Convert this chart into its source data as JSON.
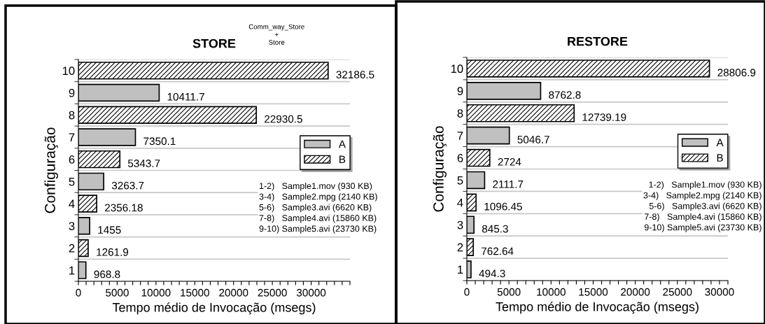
{
  "chart_data": [
    {
      "type": "bar",
      "orientation": "horizontal",
      "title": "STORE",
      "xlabel": "Tempo médio de Invocação (msegs)",
      "ylabel": "Configuração",
      "categories": [
        "10",
        "9",
        "8",
        "7",
        "6",
        "5",
        "4",
        "3",
        "2",
        "1"
      ],
      "series": [
        {
          "name": "A",
          "color": "#c0c0c0",
          "values": [
            null,
            10411.7,
            null,
            7350.1,
            null,
            3263.7,
            null,
            1455,
            null,
            968.8
          ]
        },
        {
          "name": "B",
          "color": "#000000",
          "values": [
            32186.5,
            null,
            22930.5,
            null,
            5343.7,
            null,
            2356.18,
            null,
            1261.9,
            null
          ]
        }
      ],
      "data_labels": true,
      "xlim": [
        0,
        35000
      ],
      "xticks": [
        0,
        {
          "value": 1000,
          "label": null
        },
        {
          "value": 2000,
          "label": null
        },
        {
          "value": 3000,
          "label": null
        },
        {
          "value": 4000,
          "label": null
        },
        5000,
        {
          "value": 6000,
          "label": null
        },
        {
          "value": 7000,
          "label": null
        },
        {
          "value": 8000,
          "label": null
        },
        {
          "value": 9000,
          "label": null
        },
        10000,
        {
          "value": 11000,
          "label": null
        },
        {
          "value": 12000,
          "label": null
        },
        {
          "value": 13000,
          "label": null
        },
        {
          "value": 14000,
          "label": null
        },
        15000,
        {
          "value": 16000,
          "label": null
        },
        {
          "value": 17000,
          "label": null
        },
        {
          "value": 18000,
          "label": null
        },
        {
          "value": 19000,
          "label": null
        },
        20000,
        {
          "value": 21000,
          "label": null
        },
        {
          "value": 22000,
          "label": null
        },
        {
          "value": 23000,
          "label": null
        },
        {
          "value": 24000,
          "label": null
        },
        25000,
        {
          "value": 26000,
          "label": null
        },
        {
          "value": 27000,
          "label": null
        },
        {
          "value": 28000,
          "label": null
        },
        {
          "value": 29000,
          "label": null
        },
        30000,
        {
          "value": 31000,
          "label": null
        },
        {
          "value": 32000,
          "label": null
        },
        {
          "value": 33000,
          "label": null
        },
        {
          "value": 34000,
          "label": null
        },
        {
          "value": 35000,
          "label": null
        }
      ],
      "grid": "y",
      "legend": "center right",
      "annotations": [
        "Comm_way_Store\n+\nStore",
        "1-2)   Sample1.mov (930 KB)\n3-4)   Sample2.mpg (2140 KB)\n5-6)   Sample3.avi (6620 KB)\n7-8)   Sample4.avi (15860 KB)\n9-10) Sample5.avi (23730 KB)"
      ]
    },
    {
      "type": "bar",
      "orientation": "horizontal",
      "title": "RESTORE",
      "xlabel": "Tempo médio de Invocação (msegs)",
      "ylabel": "Configuração",
      "categories": [
        "10",
        "9",
        "8",
        "7",
        "6",
        "5",
        "4",
        "3",
        "2",
        "1"
      ],
      "series": [
        {
          "name": "A",
          "color": "#c0c0c0",
          "values": [
            null,
            8762.8,
            null,
            5046.7,
            null,
            2111.7,
            null,
            845.3,
            null,
            494.3
          ]
        },
        {
          "name": "B",
          "color": "#000000",
          "values": [
            28806.9,
            null,
            12739.19,
            null,
            2724,
            null,
            1096.45,
            null,
            762.64,
            null
          ]
        }
      ],
      "data_labels": true,
      "xlim": [
        0,
        31000
      ],
      "xticks": [
        0,
        {
          "value": 1000,
          "label": null
        },
        {
          "value": 2000,
          "label": null
        },
        {
          "value": 3000,
          "label": null
        },
        {
          "value": 4000,
          "label": null
        },
        5000,
        {
          "value": 6000,
          "label": null
        },
        {
          "value": 7000,
          "label": null
        },
        {
          "value": 8000,
          "label": null
        },
        {
          "value": 9000,
          "label": null
        },
        10000,
        {
          "value": 11000,
          "label": null
        },
        {
          "value": 12000,
          "label": null
        },
        {
          "value": 13000,
          "label": null
        },
        {
          "value": 14000,
          "label": null
        },
        15000,
        {
          "value": 16000,
          "label": null
        },
        {
          "value": 17000,
          "label": null
        },
        {
          "value": 18000,
          "label": null
        },
        {
          "value": 19000,
          "label": null
        },
        20000,
        {
          "value": 21000,
          "label": null
        },
        {
          "value": 22000,
          "label": null
        },
        {
          "value": 23000,
          "label": null
        },
        {
          "value": 24000,
          "label": null
        },
        25000,
        {
          "value": 26000,
          "label": null
        },
        {
          "value": 27000,
          "label": null
        },
        {
          "value": 28000,
          "label": null
        },
        {
          "value": 29000,
          "label": null
        },
        30000,
        {
          "value": 31000,
          "label": null
        }
      ],
      "grid": "y",
      "legend": "center right",
      "annotations": [
        "1-2)   Sample1.mov (930 KB)\n3-4)   Sample2.mpg (2140 KB)\n5-6)   Sample3.avi (6620 KB)\n7-8)   Sample4.avi (15860 KB)\n9-10) Sample5.avi (23730 KB)"
      ]
    }
  ]
}
